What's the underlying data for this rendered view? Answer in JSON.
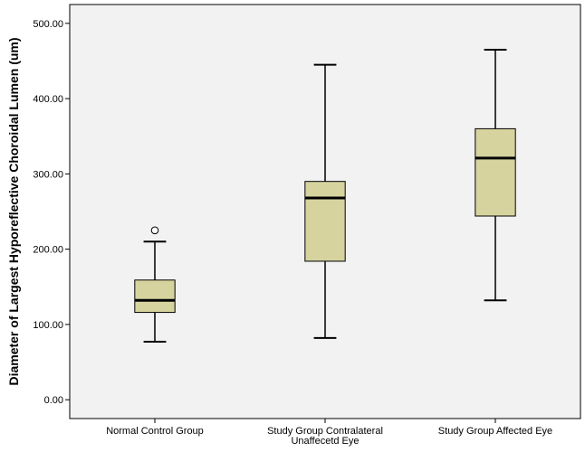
{
  "chart_data": {
    "type": "boxplot",
    "title": "",
    "xlabel": "",
    "ylabel": "Diameter of Largest Hyporeflective Choroidal Lumen (um)",
    "ylim": [
      -25,
      525
    ],
    "yticks": [
      "0.00",
      "100.00",
      "200.00",
      "300.00",
      "400.00",
      "500.00"
    ],
    "grid": false,
    "colors": {
      "plot_background": "#f2f2f2",
      "box_fill": "#d6d39f",
      "stroke": "#000000"
    },
    "categories": [
      {
        "label_lines": [
          "Normal Control Group"
        ],
        "min": 77,
        "q1": 116,
        "median": 132,
        "q3": 159,
        "max": 210,
        "outliers": [
          225
        ]
      },
      {
        "label_lines": [
          "Study Group Contralateral",
          "Unaffecetd Eye"
        ],
        "min": 82,
        "q1": 184,
        "median": 268,
        "q3": 290,
        "max": 445,
        "outliers": []
      },
      {
        "label_lines": [
          "Study Group Affected Eye"
        ],
        "min": 132,
        "q1": 244,
        "median": 321,
        "q3": 360,
        "max": 465,
        "outliers": []
      }
    ]
  }
}
